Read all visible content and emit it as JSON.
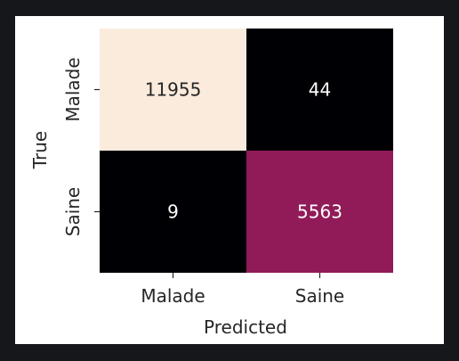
{
  "chart_data": {
    "type": "heatmap",
    "title": "",
    "xlabel": "Predicted",
    "ylabel": "True",
    "x_categories": [
      "Malade",
      "Saine"
    ],
    "y_categories": [
      "Malade",
      "Saine"
    ],
    "values": [
      [
        11955,
        44
      ],
      [
        9,
        5563
      ]
    ],
    "colorbar": false,
    "colors": {
      "low": "#000004",
      "high_cell": "#eb552a",
      "light_text": "#ffffff",
      "dark_text": "#262626"
    }
  }
}
